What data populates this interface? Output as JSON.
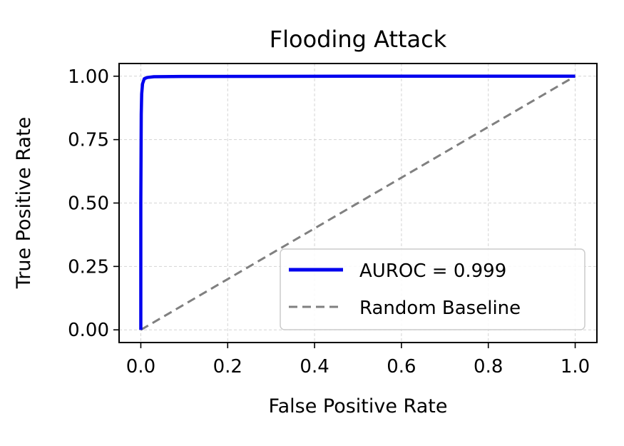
{
  "chart_data": {
    "type": "line",
    "title": "Flooding Attack",
    "xlabel": "False Positive Rate",
    "ylabel": "True Positive Rate",
    "xlim": [
      -0.05,
      1.05
    ],
    "ylim": [
      -0.05,
      1.05
    ],
    "xticks": [
      0.0,
      0.2,
      0.4,
      0.6,
      0.8,
      1.0
    ],
    "xtick_labels": [
      "0.0",
      "0.2",
      "0.4",
      "0.6",
      "0.8",
      "1.0"
    ],
    "yticks": [
      0.0,
      0.25,
      0.5,
      0.75,
      1.0
    ],
    "ytick_labels": [
      "0.00",
      "0.25",
      "0.50",
      "0.75",
      "1.00"
    ],
    "grid": true,
    "legend_position": "lower-right",
    "series": [
      {
        "name": "AUROC = 0.999",
        "color": "#0000ee",
        "style": "solid",
        "x": [
          0.0,
          0.0,
          0.001,
          0.002,
          0.004,
          0.008,
          0.015,
          0.03,
          0.1,
          0.5,
          1.0
        ],
        "y": [
          0.0,
          0.5,
          0.85,
          0.93,
          0.97,
          0.99,
          0.995,
          0.998,
          0.999,
          1.0,
          1.0
        ]
      },
      {
        "name": "Random Baseline",
        "color": "#808080",
        "style": "dashed",
        "x": [
          0.0,
          1.0
        ],
        "y": [
          0.0,
          1.0
        ]
      }
    ]
  }
}
